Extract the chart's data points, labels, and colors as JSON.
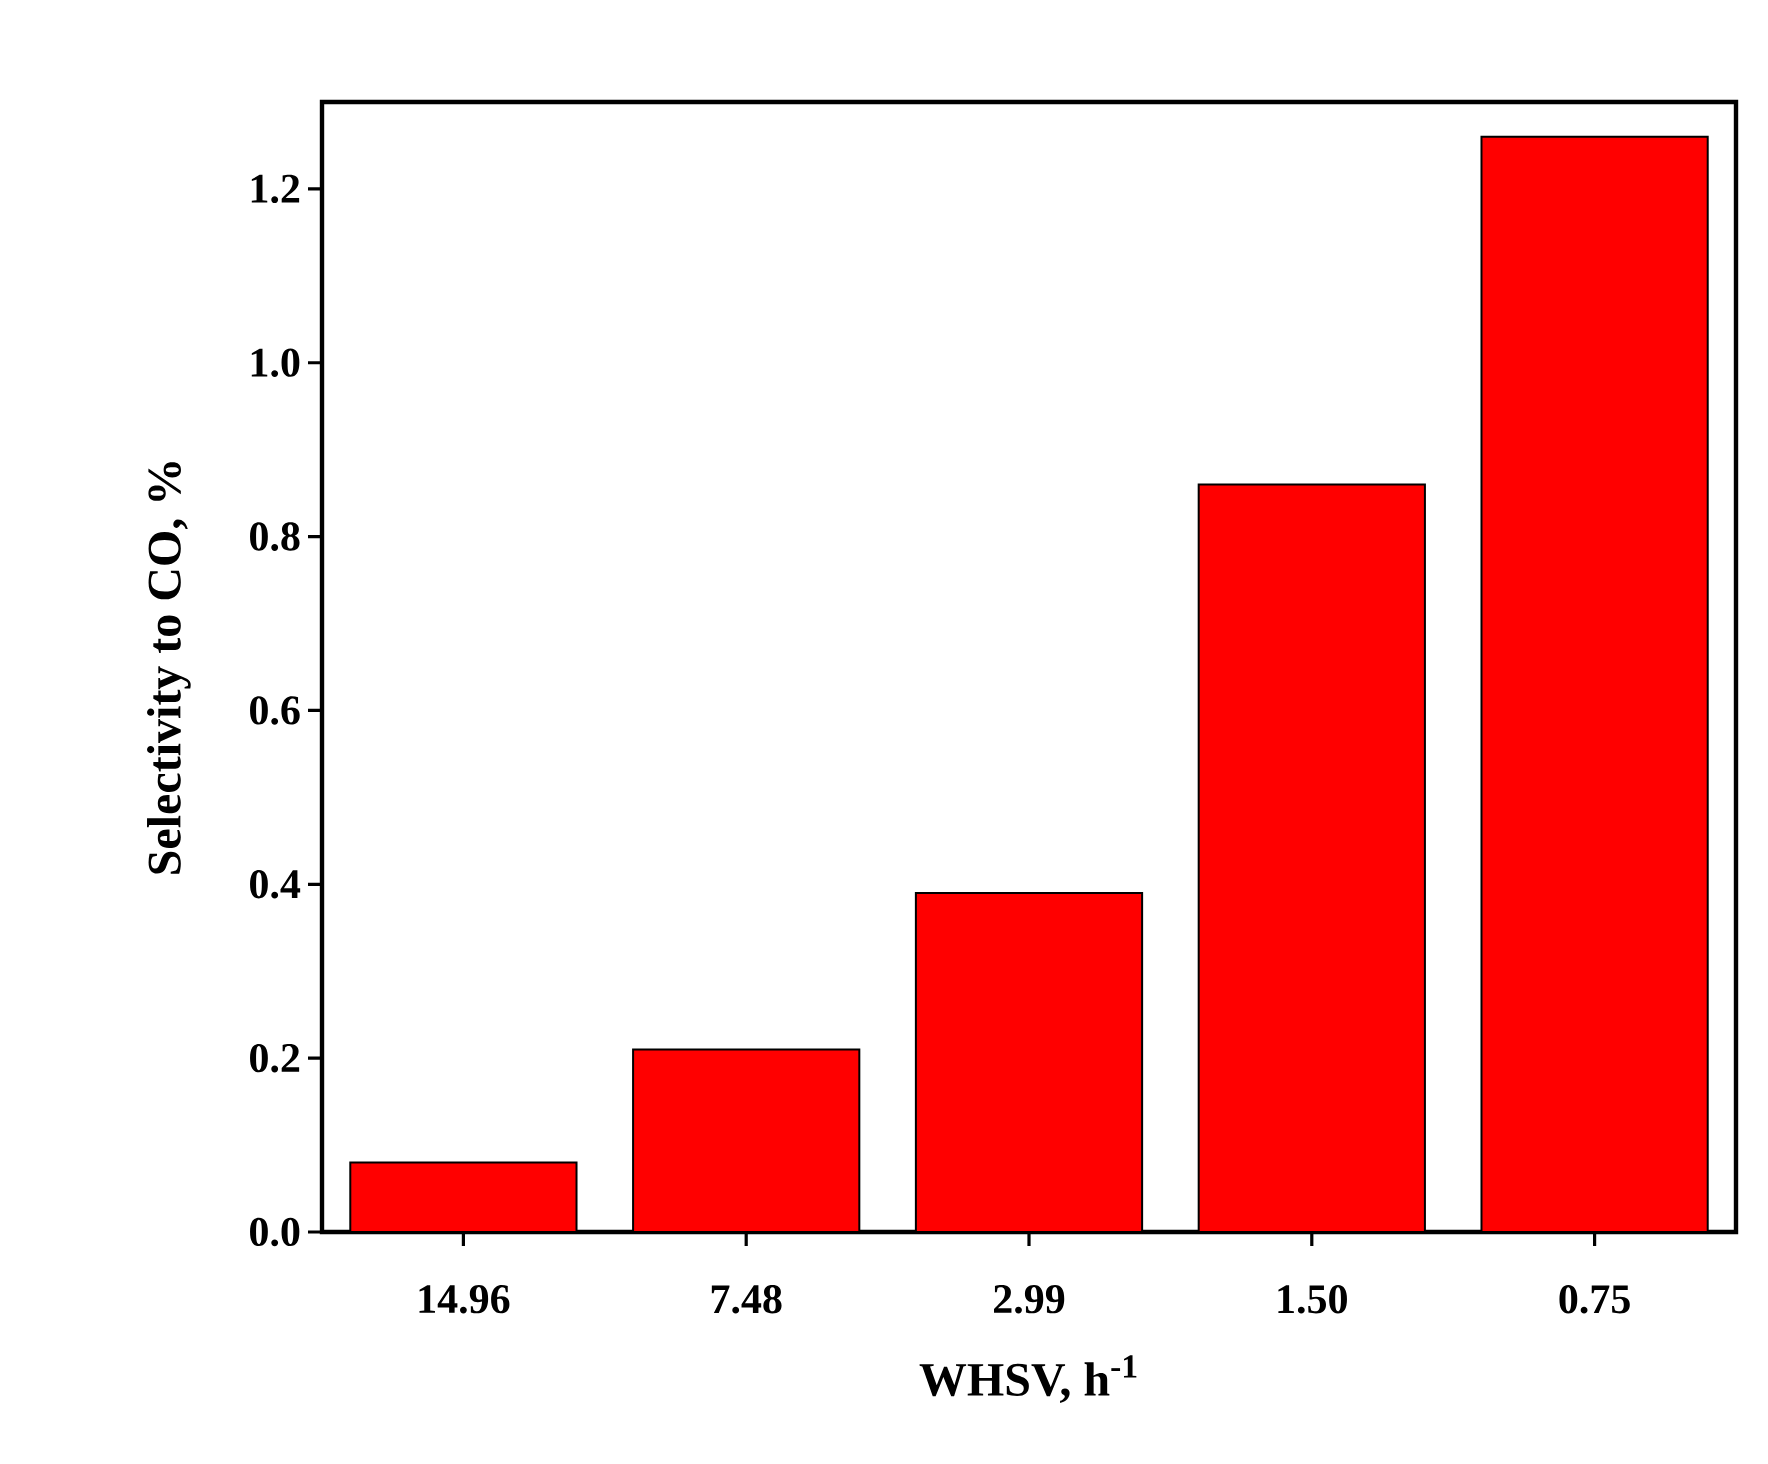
{
  "chart_data": {
    "type": "bar",
    "xlabel": "WHSV, h$^{-1}$",
    "ylabel": "Selectivity to CO, %",
    "categories": [
      "14.96",
      "7.48",
      "2.99",
      "1.50",
      "0.75"
    ],
    "values": [
      0.08,
      0.21,
      0.39,
      0.86,
      1.26
    ],
    "color": "#ff0000",
    "ylim": [
      0,
      1.3
    ],
    "yticks": [
      {
        "value": 0,
        "label": "0.0"
      },
      0.2,
      0.4,
      0.6,
      0.8,
      {
        "value": 1,
        "label": "1.0"
      },
      1.2
    ],
    "grid": false
  }
}
